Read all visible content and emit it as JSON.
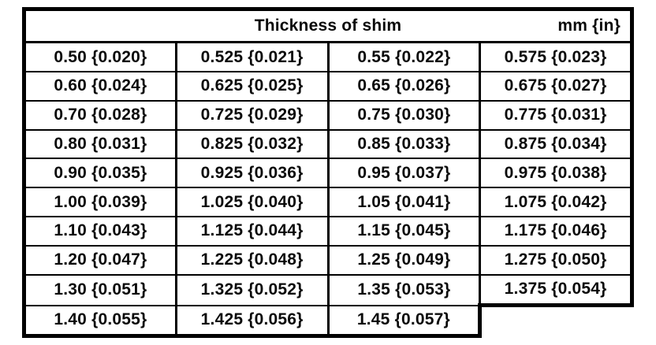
{
  "table": {
    "header": {
      "title": "Thickness of shim",
      "unit": "mm {in}"
    },
    "rows": [
      [
        "0.50 {0.020}",
        "0.525 {0.021}",
        "0.55 {0.022}",
        "0.575 {0.023}"
      ],
      [
        "0.60 {0.024}",
        "0.625 {0.025}",
        "0.65 {0.026}",
        "0.675 {0.027}"
      ],
      [
        "0.70 {0.028}",
        "0.725 {0.029}",
        "0.75 {0.030}",
        "0.775 {0.031}"
      ],
      [
        "0.80 {0.031}",
        "0.825 {0.032}",
        "0.85 {0.033}",
        "0.875 {0.034}"
      ],
      [
        "0.90 {0.035}",
        "0.925 {0.036}",
        "0.95 {0.037}",
        "0.975 {0.038}"
      ],
      [
        "1.00 {0.039}",
        "1.025 {0.040}",
        "1.05 {0.041}",
        "1.075 {0.042}"
      ],
      [
        "1.10 {0.043}",
        "1.125 {0.044}",
        "1.15 {0.045}",
        "1.175 {0.046}"
      ],
      [
        "1.20 {0.047}",
        "1.225 {0.048}",
        "1.25 {0.049}",
        "1.275 {0.050}"
      ],
      [
        "1.30 {0.051}",
        "1.325 {0.052}",
        "1.35 {0.053}",
        "1.375 {0.054}"
      ],
      [
        "1.40 {0.055}",
        "1.425 {0.056}",
        "1.45 {0.057}",
        ""
      ]
    ]
  }
}
